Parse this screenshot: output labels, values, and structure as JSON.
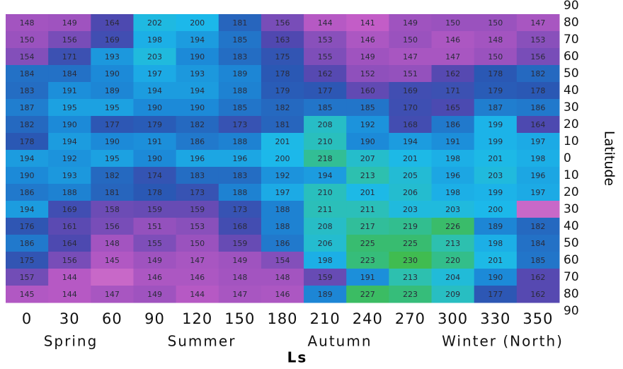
{
  "chart_data": {
    "type": "heatmap",
    "x_label": "Ls",
    "y_label": "Latitude",
    "categories": [
      "0",
      "30",
      "60",
      "90",
      "120",
      "150",
      "180",
      "210",
      "240",
      "270",
      "300",
      "330",
      "350"
    ],
    "seasons": [
      "Spring",
      "Summer",
      "Autumn",
      "Winter (North)"
    ],
    "rows": [
      80,
      70,
      60,
      50,
      40,
      30,
      20,
      10,
      0,
      -10,
      -20,
      -30,
      -40,
      -50,
      -60,
      -70,
      -80
    ],
    "values": [
      [
        148,
        149,
        164,
        202,
        200,
        181,
        156,
        144,
        141,
        149,
        150,
        150,
        147
      ],
      [
        150,
        156,
        169,
        198,
        194,
        185,
        163,
        153,
        146,
        150,
        146,
        148,
        153
      ],
      [
        154,
        171,
        193,
        203,
        190,
        183,
        175,
        155,
        149,
        147,
        147,
        150,
        156
      ],
      [
        184,
        184,
        190,
        197,
        193,
        189,
        178,
        162,
        152,
        151,
        162,
        178,
        182
      ],
      [
        183,
        191,
        189,
        194,
        194,
        188,
        179,
        177,
        160,
        169,
        171,
        179,
        178
      ],
      [
        187,
        195,
        195,
        190,
        190,
        185,
        182,
        185,
        185,
        170,
        165,
        187,
        186
      ],
      [
        182,
        190,
        177,
        179,
        182,
        173,
        181,
        208,
        192,
        168,
        186,
        199,
        164
      ],
      [
        178,
        194,
        190,
        191,
        186,
        188,
        201,
        210,
        190,
        194,
        191,
        199,
        197
      ],
      [
        194,
        192,
        195,
        190,
        196,
        196,
        200,
        218,
        207,
        201,
        198,
        201,
        198
      ],
      [
        190,
        193,
        182,
        174,
        183,
        183,
        192,
        194,
        213,
        205,
        196,
        203,
        196
      ],
      [
        186,
        188,
        181,
        178,
        173,
        188,
        197,
        210,
        201,
        206,
        198,
        199,
        197
      ],
      [
        194,
        169,
        158,
        159,
        159,
        173,
        188,
        211,
        211,
        203,
        203,
        200,
        null
      ],
      [
        176,
        161,
        156,
        151,
        153,
        168,
        188,
        208,
        217,
        219,
        226,
        189,
        182
      ],
      [
        186,
        164,
        148,
        155,
        150,
        159,
        186,
        206,
        225,
        225,
        213,
        198,
        184
      ],
      [
        175,
        156,
        145,
        149,
        147,
        149,
        154,
        198,
        223,
        230,
        220,
        201,
        185
      ],
      [
        157,
        144,
        null,
        146,
        146,
        148,
        148,
        159,
        191,
        213,
        204,
        190,
        162
      ],
      [
        145,
        144,
        147,
        149,
        144,
        147,
        146,
        189,
        227,
        223,
        209,
        177,
        162
      ]
    ],
    "ylim": [
      -90,
      90
    ],
    "yticks": [
      90,
      80,
      70,
      60,
      50,
      40,
      30,
      20,
      10,
      0,
      {
        "value": -10,
        "label": "10"
      },
      {
        "value": -20,
        "label": "20"
      },
      {
        "value": -30,
        "label": "30"
      },
      {
        "value": -40,
        "label": "40"
      },
      {
        "value": -50,
        "label": "50"
      },
      {
        "value": -60,
        "label": "60"
      },
      {
        "value": -70,
        "label": "70"
      },
      {
        "value": -80,
        "label": "80"
      },
      {
        "value": -90,
        "label": "90"
      }
    ],
    "colorscale": [
      {
        "value": 140,
        "color": "#c85ec8"
      },
      {
        "value": 150,
        "color": "#9a52be"
      },
      {
        "value": 163,
        "color": "#5048b0"
      },
      {
        "value": 178,
        "color": "#2a58b4"
      },
      {
        "value": 190,
        "color": "#1c8ad8"
      },
      {
        "value": 200,
        "color": "#1cb8ea"
      },
      {
        "value": 212,
        "color": "#2cc0b4"
      },
      {
        "value": 225,
        "color": "#38bc70"
      },
      {
        "value": 230,
        "color": "#40bc50"
      }
    ],
    "null_color": "#c868c8"
  }
}
